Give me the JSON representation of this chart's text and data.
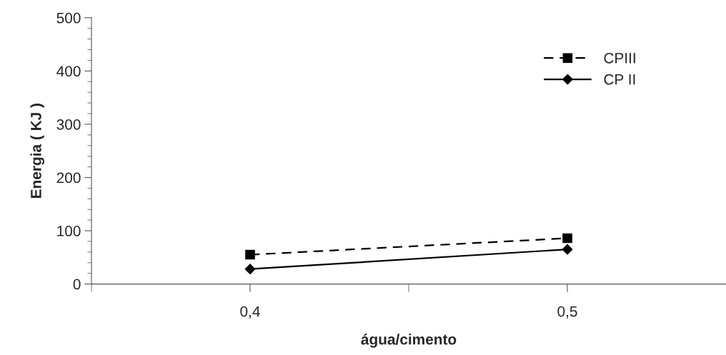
{
  "chart_data": {
    "type": "line",
    "xlabel": "água/cimento",
    "ylabel": "Energia ( KJ )",
    "x": [
      0.4,
      0.5
    ],
    "series": [
      {
        "name": "CPIII",
        "color": "#000000",
        "values": [
          55,
          86
        ],
        "marker": "square",
        "line_style": "dashed"
      },
      {
        "name": "CP II",
        "color": "#000000",
        "values": [
          28,
          65
        ],
        "marker": "diamond",
        "line_style": "solid"
      }
    ],
    "xlim": [
      0.35,
      0.55
    ],
    "xticks": [
      {
        "value": 0.35,
        "label": null
      },
      {
        "value": 0.4,
        "label": "0,4"
      },
      {
        "value": 0.45,
        "label": null
      },
      {
        "value": 0.5,
        "label": "0,5"
      }
    ],
    "ylim": [
      0,
      500
    ],
    "yticks": [
      0,
      {
        "value": 20,
        "label": null
      },
      {
        "value": 40,
        "label": null
      },
      {
        "value": 60,
        "label": null
      },
      {
        "value": 80,
        "label": null
      },
      100,
      {
        "value": 120,
        "label": null
      },
      {
        "value": 140,
        "label": null
      },
      {
        "value": 160,
        "label": null
      },
      {
        "value": 180,
        "label": null
      },
      200,
      {
        "value": 220,
        "label": null
      },
      {
        "value": 240,
        "label": null
      },
      {
        "value": 260,
        "label": null
      },
      {
        "value": 280,
        "label": null
      },
      300,
      {
        "value": 320,
        "label": null
      },
      {
        "value": 340,
        "label": null
      },
      {
        "value": 360,
        "label": null
      },
      {
        "value": 380,
        "label": null
      },
      400,
      {
        "value": 420,
        "label": null
      },
      {
        "value": 440,
        "label": null
      },
      {
        "value": 460,
        "label": null
      },
      {
        "value": 480,
        "label": null
      },
      500
    ],
    "grid": false,
    "legend": "top right"
  }
}
